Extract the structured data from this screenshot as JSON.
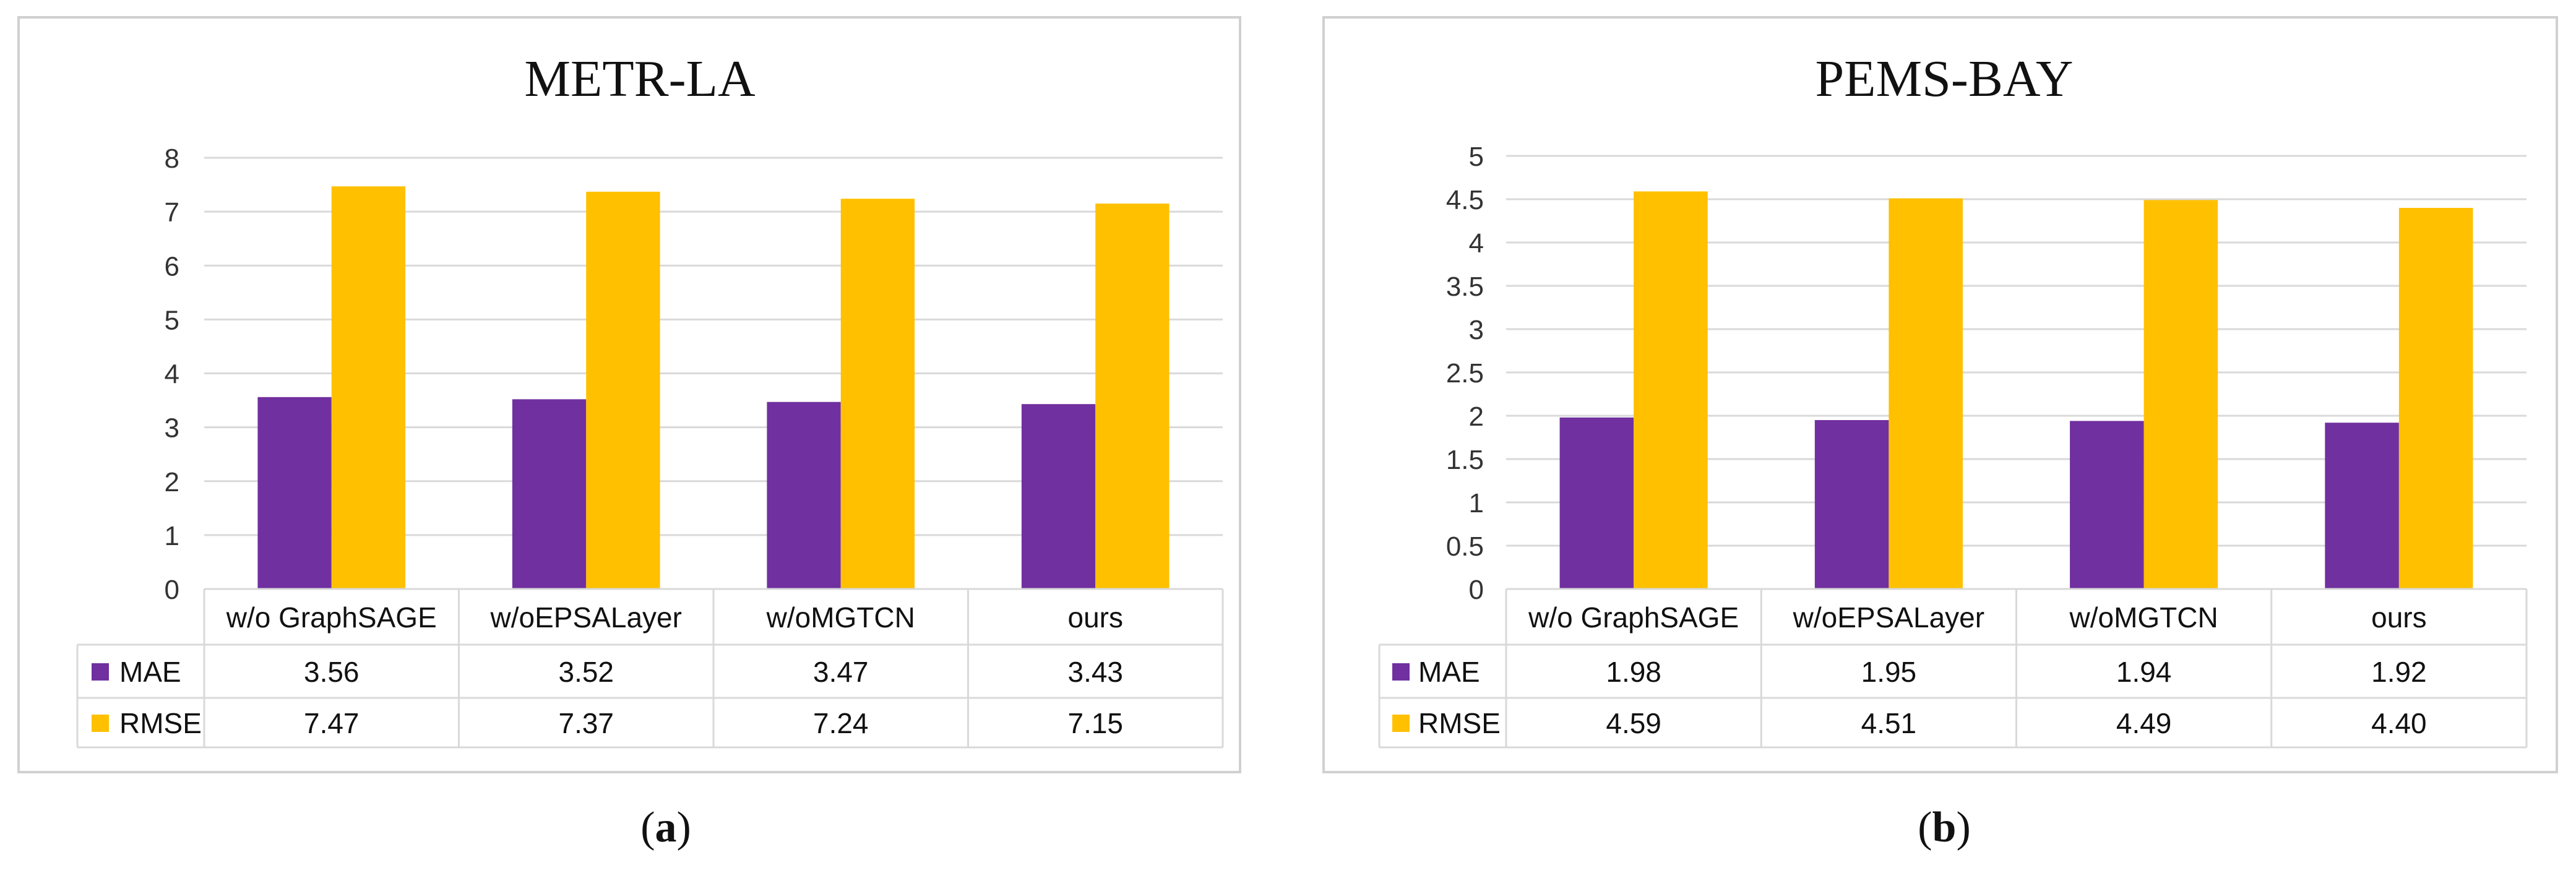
{
  "chart_data": [
    {
      "type": "bar",
      "title": "METR-LA",
      "caption_letter": "a",
      "categories": [
        "w/o GraphSAGE",
        "w/oEPSALayer",
        "w/oMGTCN",
        "ours"
      ],
      "series": [
        {
          "name": "MAE",
          "color": "#7030a0",
          "values": [
            3.56,
            3.52,
            3.47,
            3.43
          ],
          "labels": [
            "3.56",
            "3.52",
            "3.47",
            "3.43"
          ]
        },
        {
          "name": "RMSE",
          "color": "#ffc000",
          "values": [
            7.47,
            7.37,
            7.24,
            7.15
          ],
          "labels": [
            "7.47",
            "7.37",
            "7.24",
            "7.15"
          ]
        }
      ],
      "ylim": [
        0,
        8
      ],
      "yticks": [
        0,
        1,
        2,
        3,
        4,
        5,
        6,
        7,
        8
      ],
      "ytick_labels": [
        "0",
        "1",
        "2",
        "3",
        "4",
        "5",
        "6",
        "7",
        "8"
      ],
      "grid": true,
      "legend": "data-table"
    },
    {
      "type": "bar",
      "title": "PEMS-BAY",
      "caption_letter": "b",
      "categories": [
        "w/o GraphSAGE",
        "w/oEPSALayer",
        "w/oMGTCN",
        "ours"
      ],
      "series": [
        {
          "name": "MAE",
          "color": "#7030a0",
          "values": [
            1.98,
            1.95,
            1.94,
            1.92
          ],
          "labels": [
            "1.98",
            "1.95",
            "1.94",
            "1.92"
          ]
        },
        {
          "name": "RMSE",
          "color": "#ffc000",
          "values": [
            4.59,
            4.51,
            4.49,
            4.4
          ],
          "labels": [
            "4.59",
            "4.51",
            "4.49",
            "4.40"
          ]
        }
      ],
      "ylim": [
        0,
        5
      ],
      "yticks": [
        0,
        0.5,
        1,
        1.5,
        2,
        2.5,
        3,
        3.5,
        4,
        4.5,
        5
      ],
      "ytick_labels": [
        "0",
        "0.5",
        "1",
        "1.5",
        "2",
        "2.5",
        "3",
        "3.5",
        "4",
        "4.5",
        "5"
      ],
      "grid": true,
      "legend": "data-table"
    }
  ]
}
